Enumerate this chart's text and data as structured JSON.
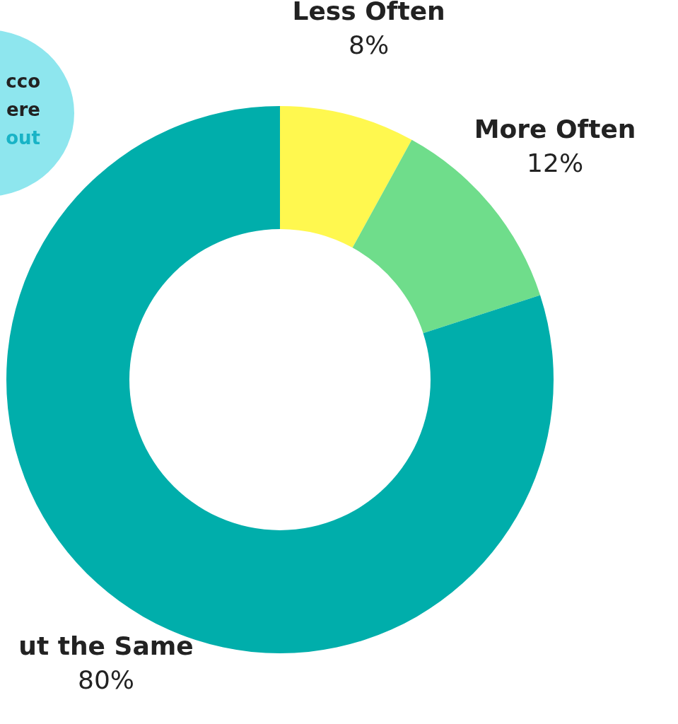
{
  "chart_data": {
    "type": "donut",
    "categories": [
      "Less Often",
      "More Often",
      "ut the Same"
    ],
    "values": [
      8,
      12,
      80
    ],
    "colors": [
      "#fff84f",
      "#6fdd8b",
      "#00aeab"
    ],
    "value_labels": [
      "8%",
      "12%",
      "80%"
    ],
    "annotations": [
      "cco",
      "ere",
      "out"
    ],
    "legend": false
  }
}
